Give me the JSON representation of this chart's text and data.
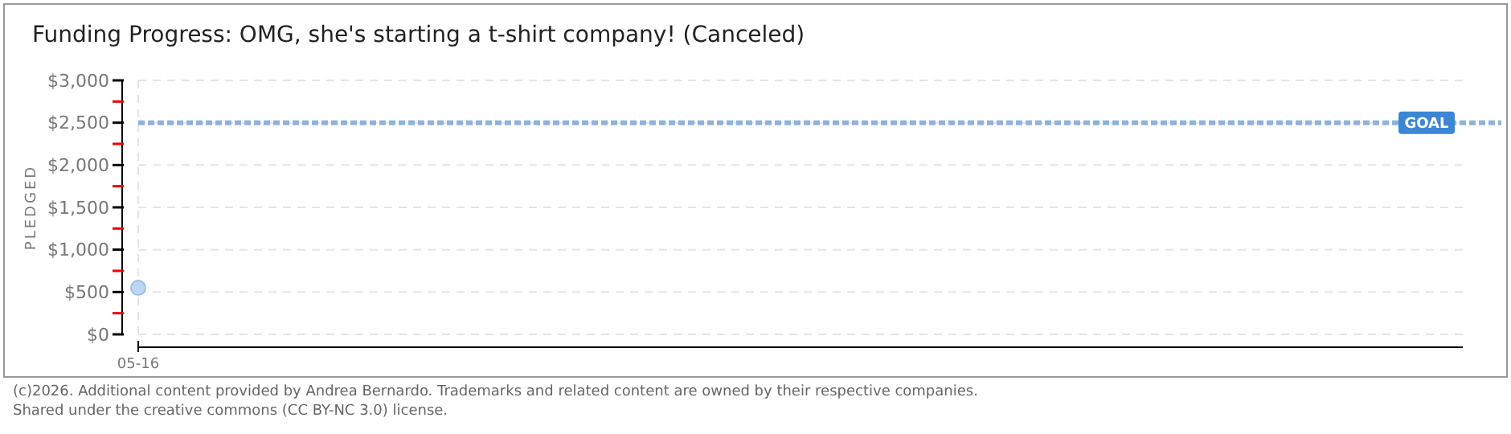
{
  "chart_data": {
    "type": "scatter",
    "title": "Funding Progress: OMG, she's starting a t-shirt company! (Canceled)",
    "ylabel": "PLEDGED",
    "categories": [
      "05-16"
    ],
    "series": [
      {
        "color": "#bcd6f2",
        "values": [
          550
        ]
      }
    ],
    "ylim": [
      0,
      3000
    ],
    "yticks": [
      {
        "value": 0,
        "label": "$0"
      },
      {
        "value": 250,
        "label": null
      },
      {
        "value": 500,
        "label": "$500"
      },
      {
        "value": 750,
        "label": null
      },
      {
        "value": 1000,
        "label": "$1,000"
      },
      {
        "value": 1250,
        "label": null
      },
      {
        "value": 1500,
        "label": "$1,500"
      },
      {
        "value": 1750,
        "label": null
      },
      {
        "value": 2000,
        "label": "$2,000"
      },
      {
        "value": 2250,
        "label": null
      },
      {
        "value": 2500,
        "label": "$2,500"
      },
      {
        "value": 2750,
        "label": null
      },
      {
        "value": 3000,
        "label": "$3,000"
      }
    ],
    "grid": true,
    "marker": "circle",
    "ref_lines": [
      {
        "axis": "y",
        "value": 2500,
        "label": "GOAL",
        "color": "#8fb2dc",
        "line_style": "dotted"
      }
    ],
    "annotations": [
      "(c)2026. Additional content provided by Andrea Bernardo. Trademarks and related content are owned by their respective companies.",
      "Shared under the creative commons (CC BY-NC 3.0) license."
    ]
  }
}
